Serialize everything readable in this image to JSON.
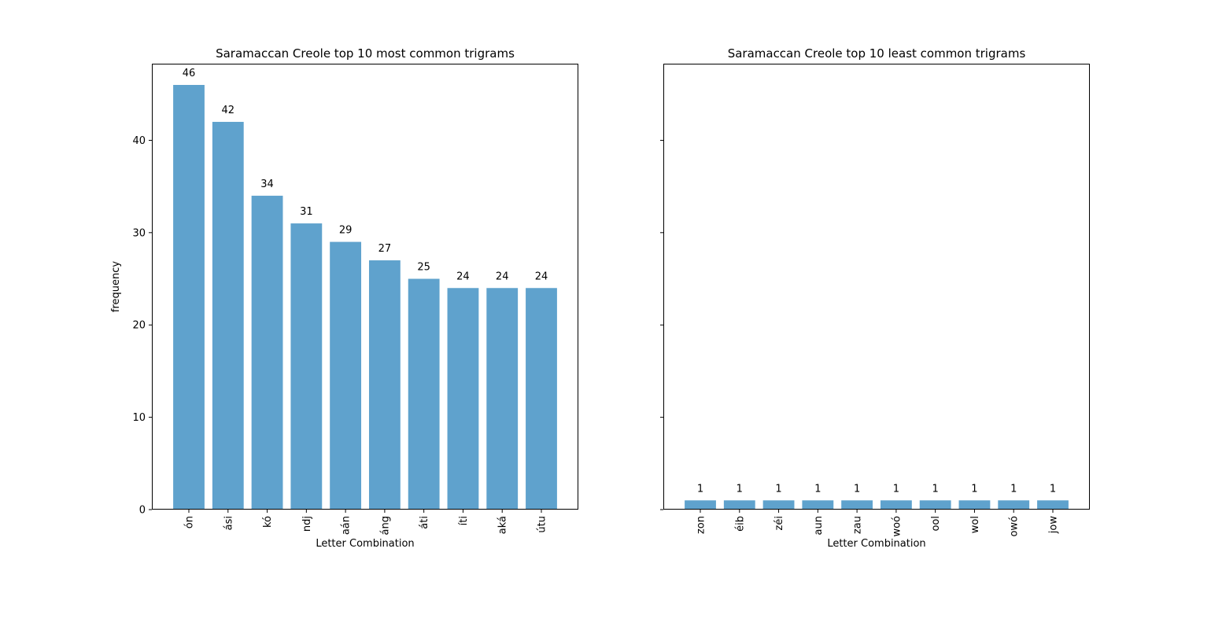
{
  "chart_data": [
    {
      "type": "bar",
      "title": "Saramaccan Creole top 10 most common trigrams",
      "xlabel": "Letter Combination",
      "ylabel": "frequency",
      "categories": [
        "ón",
        "ási",
        "kó",
        "ndj",
        "aán",
        "áng",
        "áti",
        "íti",
        "aká",
        "útu"
      ],
      "values": [
        46,
        42,
        34,
        31,
        29,
        27,
        25,
        24,
        24,
        24
      ],
      "ylim": [
        0,
        48.3
      ],
      "yticks": [
        0,
        10,
        20,
        30,
        40
      ],
      "show_ytick_labels": true,
      "grid": false,
      "bar_color": "#5fa2cd"
    },
    {
      "type": "bar",
      "title": "Saramaccan Creole top 10 least common trigrams",
      "xlabel": "Letter Combination",
      "ylabel": "",
      "categories": [
        "zon",
        "éib",
        "zéi",
        "aun",
        "zau",
        "woó",
        "ool",
        "wol",
        "owó",
        "jow"
      ],
      "values": [
        1,
        1,
        1,
        1,
        1,
        1,
        1,
        1,
        1,
        1
      ],
      "ylim": [
        0,
        48.3
      ],
      "yticks": [
        0,
        10,
        20,
        30,
        40
      ],
      "show_ytick_labels": false,
      "grid": false,
      "bar_color": "#5fa2cd"
    }
  ]
}
